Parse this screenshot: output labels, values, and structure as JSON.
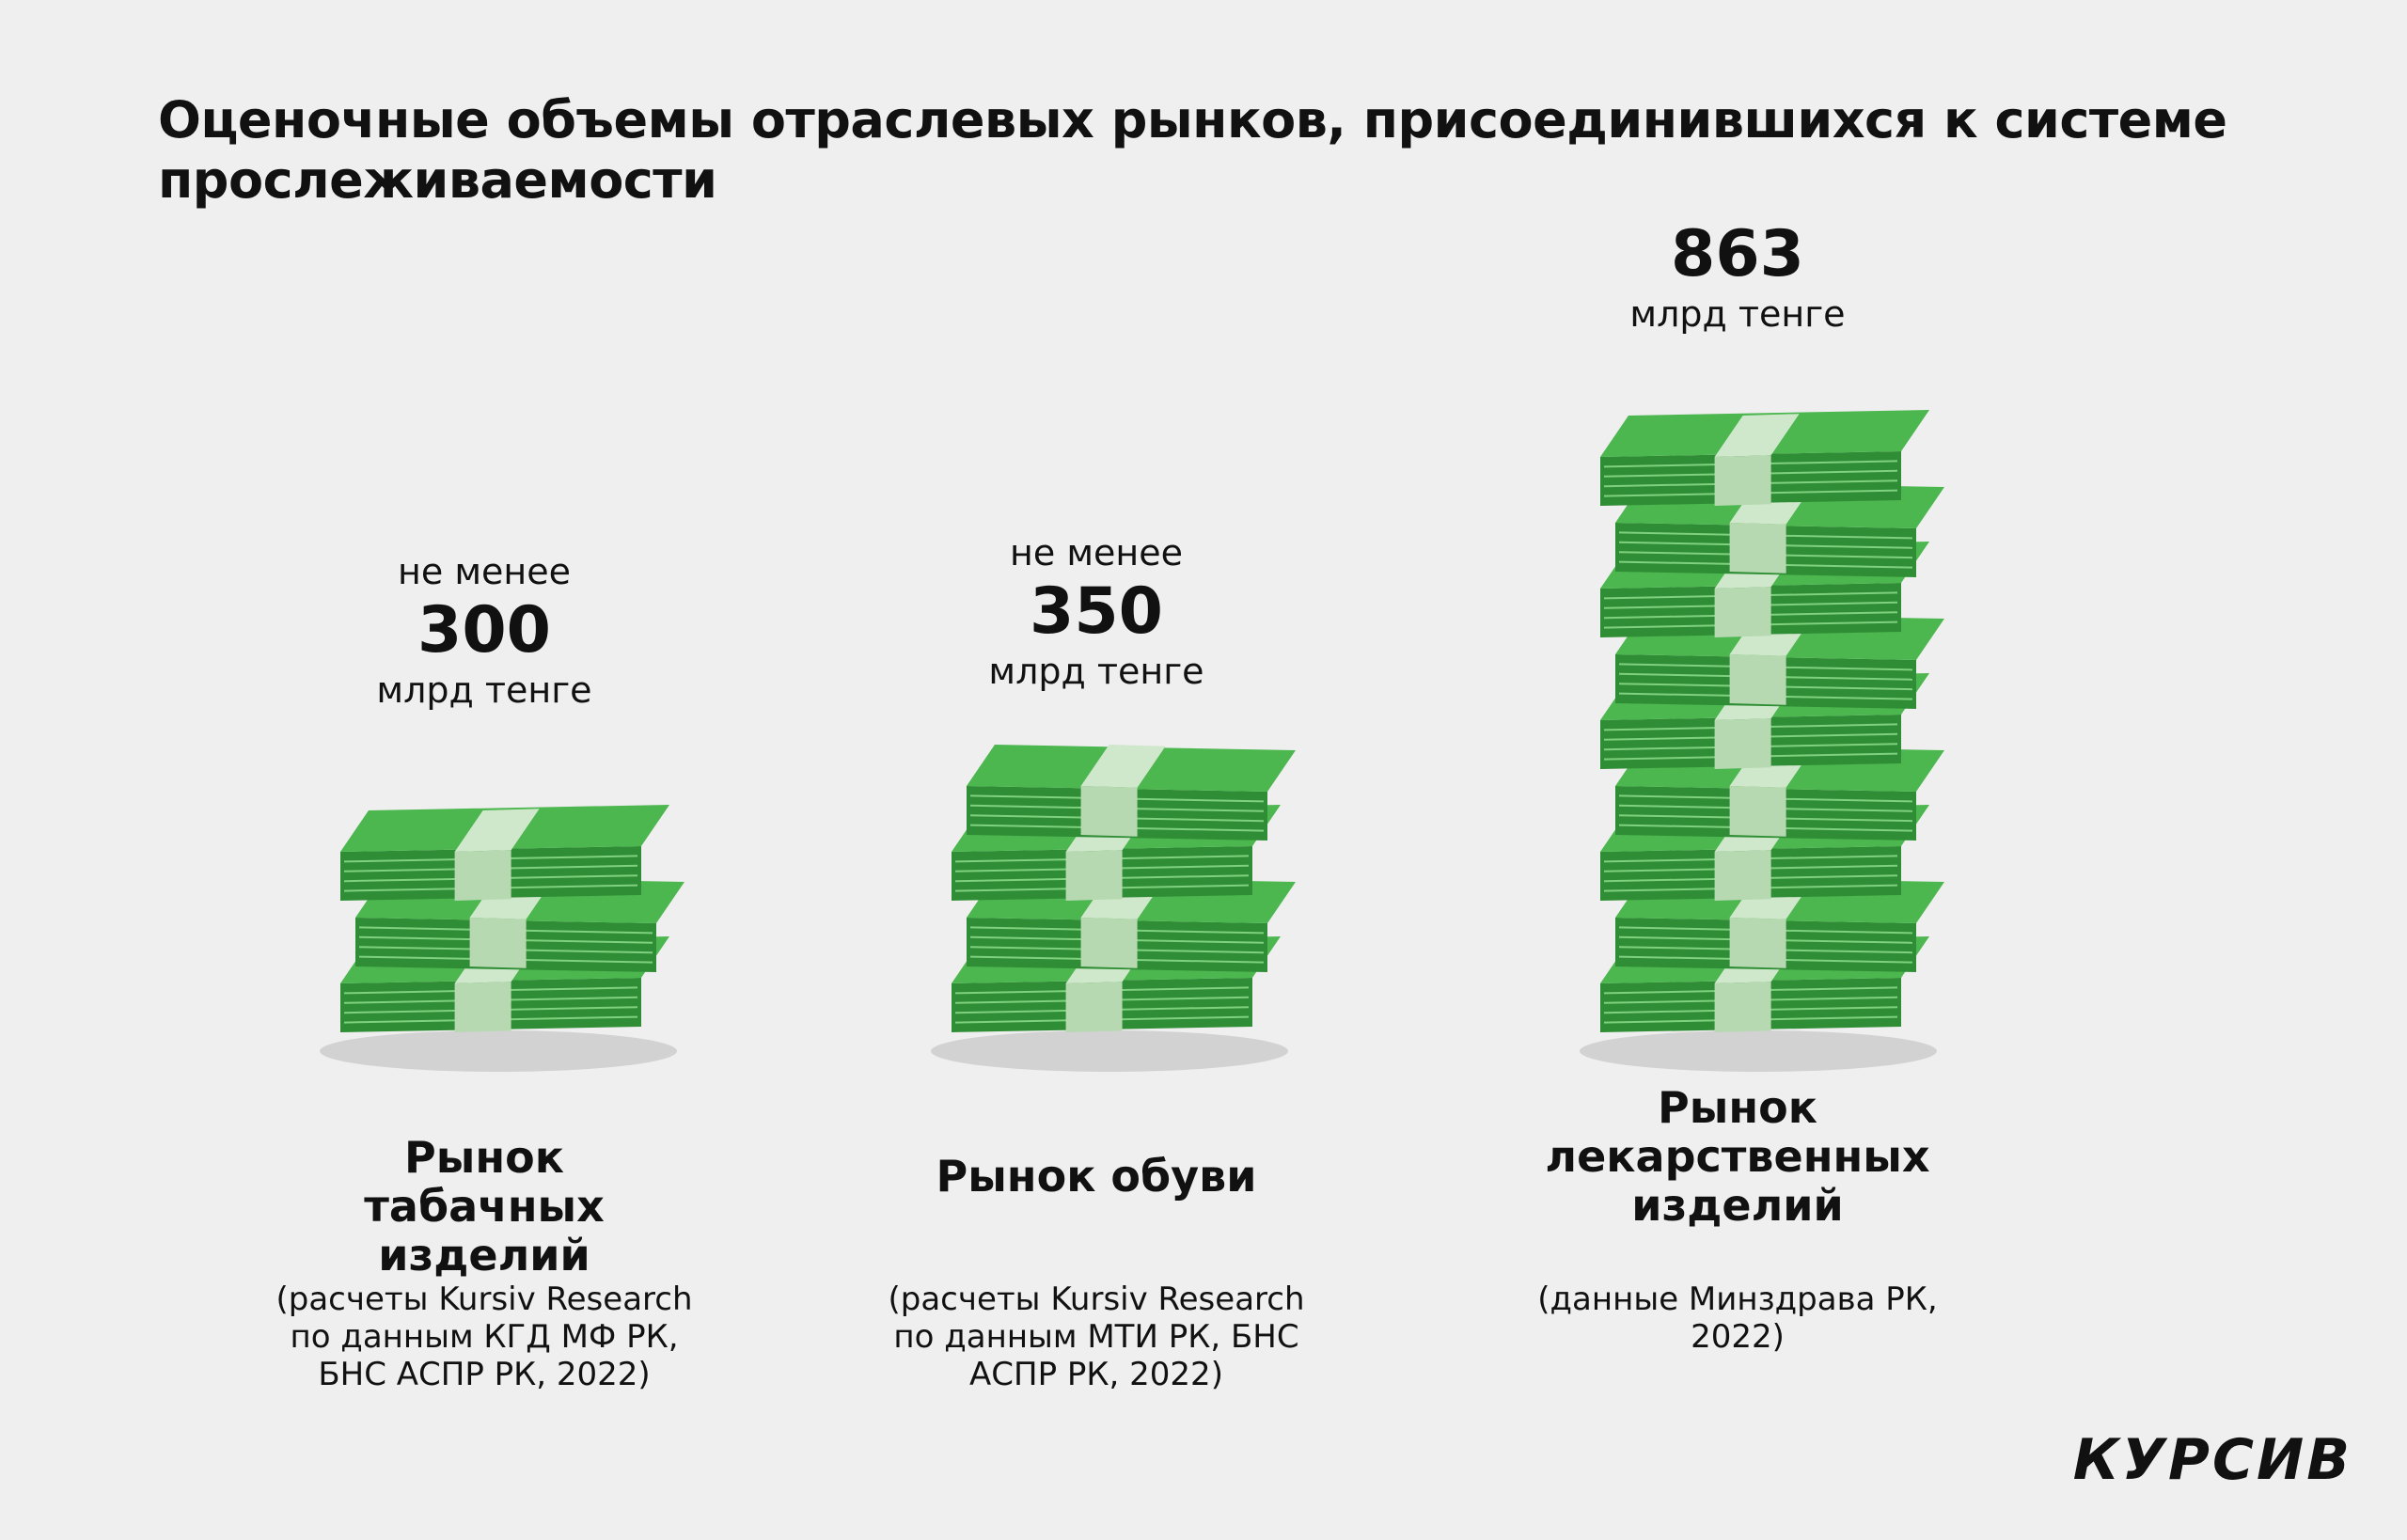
{
  "title": "Оценочные объемы отраслевых рынков, присоединившихся к системе прослеживаемости",
  "logo": "КУРСИВ",
  "colors": {
    "money": "#4cb64f",
    "money_dark": "#2f8e35",
    "band": "#cfe7cb",
    "shadow": "#d2d2d2"
  },
  "chart_data": {
    "type": "bar",
    "categories": [
      "Рынок табачных изделий",
      "Рынок обуви",
      "Рынок лекарственных изделий"
    ],
    "series": [
      {
        "values": [
          300,
          350,
          863
        ]
      }
    ],
    "unit": "млрд тенге",
    "markets": [
      {
        "prefix": "не менее",
        "value": "300",
        "unit": "млрд тенге",
        "name_lines": [
          "Рынок",
          "табачных изделий"
        ],
        "source_lines": [
          "(расчеты Kursiv Research",
          "по данным КГД МФ РК,",
          "БНС АСПР РК, 2022)"
        ],
        "bundles": 3
      },
      {
        "prefix": "не менее",
        "value": "350",
        "unit": "млрд тенге",
        "name_lines": [
          "Рынок обуви"
        ],
        "source_lines": [
          "(расчеты Kursiv Research",
          "по данным МТИ РК, БНС",
          "АСПР РК, 2022)"
        ],
        "bundles": 4
      },
      {
        "prefix": "",
        "value": "863",
        "unit": "млрд тенге",
        "name_lines": [
          "Рынок",
          "лекарственных",
          "изделий"
        ],
        "source_lines": [
          "(данные Минздрава РК, 2022)"
        ],
        "bundles": 9
      }
    ]
  }
}
